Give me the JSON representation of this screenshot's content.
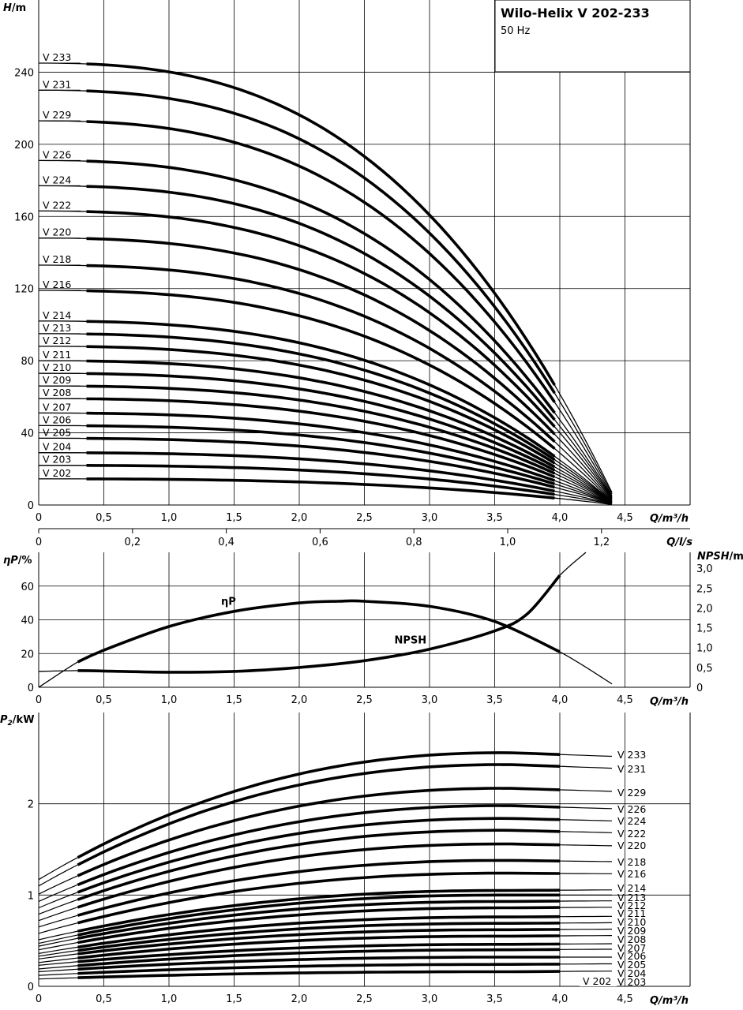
{
  "title_box": {
    "title": "Wilo-Helix V 202-233",
    "subtitle": "50 Hz"
  },
  "chart_data": [
    {
      "type": "line",
      "name": "head",
      "ylabel_italic": "H",
      "ylabel_unit": "/m",
      "xlabel": "Q/m³/h",
      "x_ticks": [
        "0",
        "0,5",
        "1,0",
        "1,5",
        "2,0",
        "2,5",
        "3,0",
        "3,5",
        "4,0",
        "4,5"
      ],
      "y_ticks": [
        "0",
        "40",
        "80",
        "120",
        "160",
        "200",
        "240"
      ],
      "xlim": [
        0,
        5.0
      ],
      "ylim": [
        0,
        260
      ],
      "secondary_x": {
        "label": "Q/l/s",
        "ticks": [
          "0",
          "0,2",
          "0,4",
          "0,6",
          "0,8",
          "1,0",
          "1,2"
        ],
        "values": [
          0,
          0.2,
          0.4,
          0.6,
          0.8,
          1.0,
          1.2
        ]
      },
      "series": [
        {
          "name": "V 233",
          "shutoff": 245,
          "end": 7
        },
        {
          "name": "V 231",
          "shutoff": 230,
          "end": 6
        },
        {
          "name": "V 229",
          "shutoff": 213,
          "end": 5
        },
        {
          "name": "V 226",
          "shutoff": 191,
          "end": 4.5
        },
        {
          "name": "V 224",
          "shutoff": 177,
          "end": 4
        },
        {
          "name": "V 222",
          "shutoff": 163,
          "end": 3.5
        },
        {
          "name": "V 220",
          "shutoff": 148,
          "end": 3
        },
        {
          "name": "V 218",
          "shutoff": 133,
          "end": 2.5
        },
        {
          "name": "V 216",
          "shutoff": 119,
          "end": 2
        },
        {
          "name": "V 214",
          "shutoff": 102,
          "end": 2
        },
        {
          "name": "V 213",
          "shutoff": 95,
          "end": 1.8
        },
        {
          "name": "V 212",
          "shutoff": 88,
          "end": 1.6
        },
        {
          "name": "V 211",
          "shutoff": 80,
          "end": 1.5
        },
        {
          "name": "V 210",
          "shutoff": 73,
          "end": 1.4
        },
        {
          "name": "V 209",
          "shutoff": 66,
          "end": 1.3
        },
        {
          "name": "V 208",
          "shutoff": 59,
          "end": 1.1
        },
        {
          "name": "V 207",
          "shutoff": 51,
          "end": 1
        },
        {
          "name": "V 206",
          "shutoff": 44,
          "end": 0.9
        },
        {
          "name": "V 205",
          "shutoff": 37,
          "end": 0.8
        },
        {
          "name": "V 204",
          "shutoff": 29,
          "end": 0.6
        },
        {
          "name": "V 203",
          "shutoff": 22,
          "end": 0.5
        },
        {
          "name": "V 202",
          "shutoff": 14.5,
          "end": 0.3
        }
      ]
    },
    {
      "type": "line",
      "name": "efficiency-npsh",
      "ylabel_italic": "ηP",
      "ylabel_unit": "/%",
      "y2label_italic": "NPSH",
      "y2label_unit": "/m",
      "xlabel": "Q/m³/h",
      "x_ticks": [
        "0",
        "0,5",
        "1,0",
        "1,5",
        "2,0",
        "2,5",
        "3,0",
        "3,5",
        "4,0",
        "4,5"
      ],
      "y_ticks": [
        "0",
        "20",
        "40",
        "60"
      ],
      "y2_ticks": [
        "0",
        "0,5",
        "1,0",
        "1,5",
        "2,0",
        "2,5",
        "3,0"
      ],
      "xlim": [
        0,
        5.0
      ],
      "ylim": [
        0,
        80
      ],
      "y2lim": [
        0,
        3.4
      ],
      "series": [
        {
          "name": "ηP",
          "x": [
            0,
            0.3,
            0.5,
            1.0,
            1.5,
            2.0,
            2.3,
            2.5,
            3.0,
            3.5,
            4.0,
            4.4
          ],
          "y": [
            0,
            15,
            22,
            36,
            45,
            50,
            51,
            51,
            48,
            39,
            21,
            2
          ]
        },
        {
          "name": "NPSH",
          "x": [
            0,
            0.3,
            0.5,
            1.0,
            1.5,
            2.0,
            2.5,
            3.0,
            3.5,
            3.75,
            4.0,
            4.2
          ],
          "y": [
            0.4,
            0.42,
            0.41,
            0.38,
            0.4,
            0.5,
            0.67,
            0.96,
            1.42,
            1.85,
            2.82,
            3.4
          ]
        }
      ]
    },
    {
      "type": "line",
      "name": "power",
      "ylabel_italic": "P",
      "ylabel_sub": "2",
      "ylabel_unit": "/kW",
      "xlabel": "Q/m³/h",
      "x_ticks": [
        "0",
        "0,5",
        "1,0",
        "1,5",
        "2,0",
        "2,5",
        "3,0",
        "3,5",
        "4,0",
        "4,5"
      ],
      "y_ticks": [
        "0",
        "1",
        "2"
      ],
      "xlim": [
        0,
        5.0
      ],
      "ylim": [
        0,
        2.9
      ],
      "series": [
        {
          "name": "V 233",
          "p0": 1.17,
          "pmax": 2.56,
          "pend": 2.5
        },
        {
          "name": "V 231",
          "p0": 1.1,
          "pmax": 2.43,
          "pend": 2.37
        },
        {
          "name": "V 229",
          "p0": 1.01,
          "pmax": 2.17,
          "pend": 2.12
        },
        {
          "name": "V 226",
          "p0": 0.93,
          "pmax": 1.98,
          "pend": 1.93
        },
        {
          "name": "V 224",
          "p0": 0.86,
          "pmax": 1.84,
          "pend": 1.8
        },
        {
          "name": "V 222",
          "p0": 0.79,
          "pmax": 1.71,
          "pend": 1.67
        },
        {
          "name": "V 220",
          "p0": 0.72,
          "pmax": 1.56,
          "pend": 1.53
        },
        {
          "name": "V 218",
          "p0": 0.65,
          "pmax": 1.38,
          "pend": 1.36
        },
        {
          "name": "V 216",
          "p0": 0.58,
          "pmax": 1.24,
          "pend": 1.23
        },
        {
          "name": "V 214",
          "p0": 0.51,
          "pmax": 1.05,
          "pend": 1.06
        },
        {
          "name": "V 213",
          "p0": 0.47,
          "pmax": 1.0,
          "pend": 1.0
        },
        {
          "name": "V 212",
          "p0": 0.44,
          "pmax": 0.93,
          "pend": 0.94
        },
        {
          "name": "V 211",
          "p0": 0.4,
          "pmax": 0.86,
          "pend": 0.87
        },
        {
          "name": "V 210",
          "p0": 0.36,
          "pmax": 0.76,
          "pend": 0.77
        },
        {
          "name": "V 209",
          "p0": 0.33,
          "pmax": 0.69,
          "pend": 0.7
        },
        {
          "name": "V 208",
          "p0": 0.3,
          "pmax": 0.62,
          "pend": 0.63
        },
        {
          "name": "V 207",
          "p0": 0.26,
          "pmax": 0.55,
          "pend": 0.56
        },
        {
          "name": "V 206",
          "p0": 0.23,
          "pmax": 0.46,
          "pend": 0.47
        },
        {
          "name": "V 205",
          "p0": 0.19,
          "pmax": 0.4,
          "pend": 0.41
        },
        {
          "name": "V 204",
          "p0": 0.16,
          "pmax": 0.32,
          "pend": 0.32
        },
        {
          "name": "V 203",
          "p0": 0.12,
          "pmax": 0.24,
          "pend": 0.25
        },
        {
          "name": "V 202",
          "p0": 0.08,
          "pmax": 0.16,
          "pend": 0.17
        }
      ]
    }
  ]
}
